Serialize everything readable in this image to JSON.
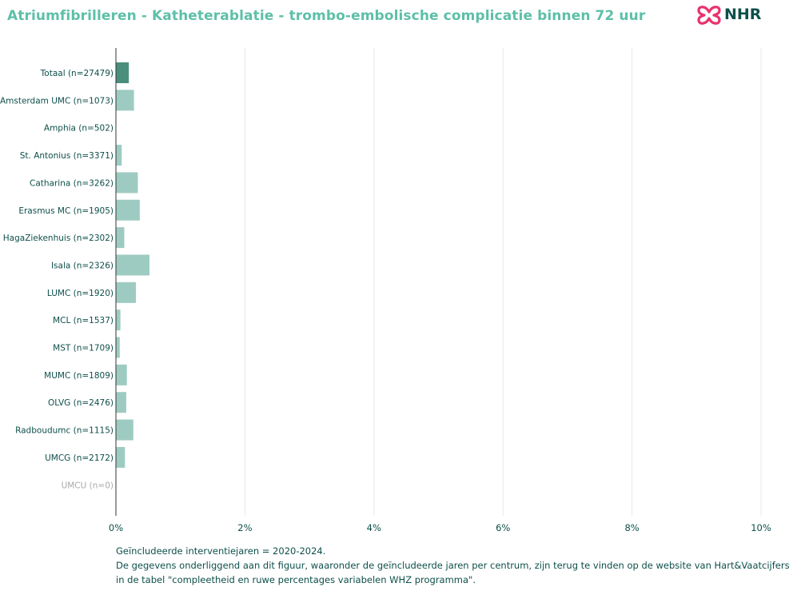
{
  "title": "Atriumfibrilleren - Katheterablatie - trombo-embolische complicatie binnen 72 uur",
  "logo": {
    "text": "NHR",
    "color": "#e8336e"
  },
  "chart_data": {
    "type": "bar",
    "orientation": "horizontal",
    "title": "Atriumfibrilleren - Katheterablatie - trombo-embolische complicatie binnen 72 uur",
    "xlabel": "",
    "ylabel": "",
    "xlim": [
      0,
      10
    ],
    "x_ticks": [
      0,
      2,
      4,
      6,
      8,
      10
    ],
    "x_tick_labels": [
      "0%",
      "2%",
      "4%",
      "6%",
      "8%",
      "10%"
    ],
    "grid": "vertical",
    "legend": "none",
    "categories": [
      "Totaal (n=27479)",
      "Amsterdam UMC (n=1073)",
      "Amphia (n=502)",
      "St. Antonius (n=3371)",
      "Catharina (n=3262)",
      "Erasmus MC (n=1905)",
      "HagaZiekenhuis (n=2302)",
      "Isala (n=2326)",
      "LUMC (n=1920)",
      "MCL (n=1537)",
      "MST (n=1709)",
      "MUMC (n=1809)",
      "OLVG (n=2476)",
      "Radboudumc (n=1115)",
      "UMCG (n=2172)",
      "UMCU (n=0)"
    ],
    "values": [
      0.2,
      0.28,
      0,
      0.09,
      0.34,
      0.37,
      0.13,
      0.52,
      0.31,
      0.07,
      0.06,
      0.17,
      0.16,
      0.27,
      0.14,
      null
    ],
    "label_status": [
      "normal",
      "normal",
      "normal",
      "normal",
      "normal",
      "normal",
      "normal",
      "normal",
      "normal",
      "normal",
      "normal",
      "normal",
      "normal",
      "normal",
      "normal",
      "muted"
    ],
    "colors": {
      "total_bar": "#4a8f7c",
      "center_bar": "#9ecbc1",
      "label": "#0d4f4a",
      "label_muted": "#aaaaaa",
      "grid": "#e8e8e8",
      "axis": "#333333",
      "tick_label": "#0d4f4a"
    }
  },
  "footnotes": [
    "Geïncludeerde interventiejaren = 2020-2024.",
    "De gegevens onderliggend aan dit figuur, waaronder de geïncludeerde jaren per centrum, zijn terug te vinden op de website van Hart&Vaatcijfers",
    "in de tabel \"compleetheid en ruwe percentages variabelen WHZ programma\"."
  ]
}
